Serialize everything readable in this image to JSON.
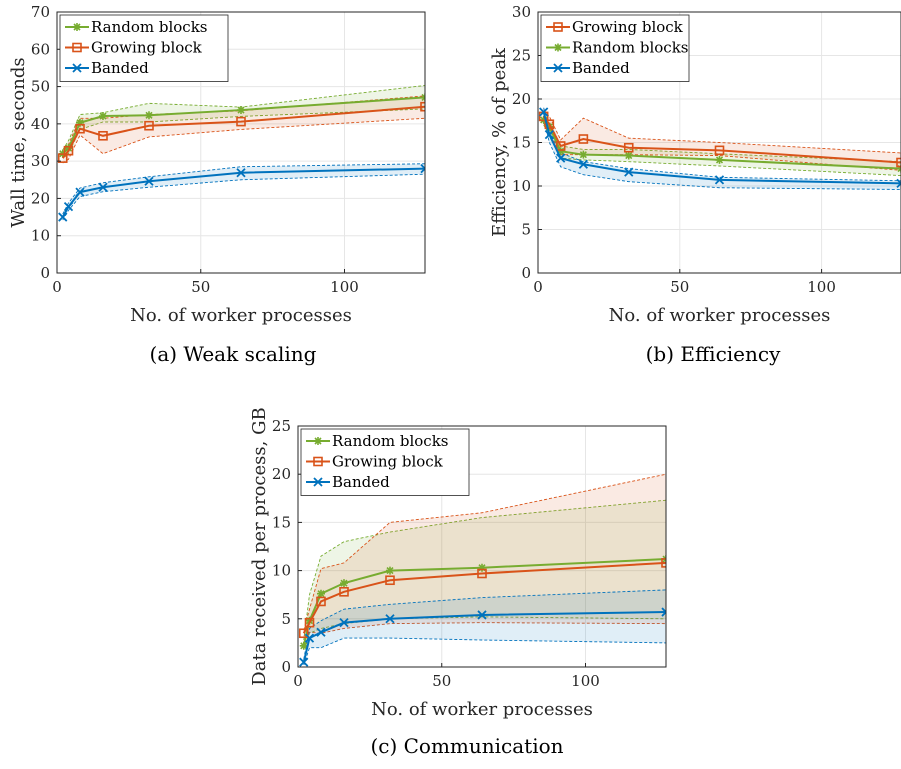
{
  "colors": {
    "random": "#77AC30",
    "growing": "#D95319",
    "banded": "#0072BD",
    "grid": "#e6e6e6",
    "axis": "#262626"
  },
  "chart_data": [
    {
      "id": "a",
      "type": "line",
      "caption": "(a) Weak scaling",
      "xlabel": "No. of worker processes",
      "ylabel": "Wall time, seconds",
      "xlim": [
        0,
        128
      ],
      "ylim": [
        0,
        70
      ],
      "xticks": [
        0,
        50,
        100
      ],
      "yticks": [
        0,
        10,
        20,
        30,
        40,
        50,
        60,
        70
      ],
      "grid": true,
      "legend_position": "top-left",
      "legend_order": [
        "random",
        "growing",
        "banded"
      ],
      "x": [
        2,
        4,
        8,
        16,
        32,
        64,
        128
      ],
      "series": [
        {
          "key": "random",
          "name": "Random blocks",
          "marker": "asterisk",
          "values": [
            32.0,
            33.5,
            40.3,
            42.1,
            42.3,
            43.7,
            47.1
          ],
          "lower": [
            31.0,
            32.0,
            38.5,
            40.5,
            40.5,
            42.0,
            44.0
          ],
          "upper": [
            33.0,
            35.5,
            42.5,
            43.0,
            45.5,
            44.5,
            50.3
          ]
        },
        {
          "key": "growing",
          "name": "Growing block",
          "marker": "square",
          "values": [
            30.8,
            32.8,
            38.7,
            36.8,
            39.5,
            40.6,
            44.6
          ],
          "lower": [
            29.5,
            30.5,
            37.0,
            32.0,
            36.5,
            38.5,
            41.5
          ],
          "upper": [
            32.0,
            34.5,
            41.5,
            41.5,
            42.5,
            43.5,
            47.5
          ]
        },
        {
          "key": "banded",
          "name": "Banded",
          "marker": "x",
          "values": [
            15.0,
            17.8,
            21.7,
            23.0,
            24.6,
            26.9,
            28.0
          ],
          "lower": [
            14.2,
            16.8,
            20.5,
            21.8,
            23.0,
            25.0,
            26.5
          ],
          "upper": [
            15.8,
            18.8,
            22.8,
            24.2,
            25.8,
            28.5,
            29.3
          ]
        }
      ]
    },
    {
      "id": "b",
      "type": "line",
      "caption": "(b) Efficiency",
      "xlabel": "No. of worker processes",
      "ylabel": "Efficiency, % of peak",
      "xlim": [
        0,
        128
      ],
      "ylim": [
        0,
        30
      ],
      "xticks": [
        0,
        50,
        100
      ],
      "yticks": [
        0,
        5,
        10,
        15,
        20,
        25,
        30
      ],
      "grid": true,
      "legend_position": "top-left",
      "legend_order": [
        "growing",
        "random",
        "banded"
      ],
      "x": [
        2,
        4,
        8,
        16,
        32,
        64,
        128
      ],
      "series": [
        {
          "key": "random",
          "name": "Random blocks",
          "marker": "asterisk",
          "values": [
            17.6,
            16.8,
            14.0,
            13.6,
            13.5,
            13.0,
            12.0
          ],
          "lower": [
            17.0,
            16.0,
            13.2,
            13.0,
            12.8,
            12.3,
            11.2
          ],
          "upper": [
            18.2,
            17.4,
            14.6,
            14.2,
            14.2,
            13.7,
            12.8
          ]
        },
        {
          "key": "growing",
          "name": "Growing block",
          "marker": "square",
          "values": [
            18.0,
            17.1,
            14.6,
            15.4,
            14.4,
            14.1,
            12.7
          ],
          "lower": [
            17.2,
            16.2,
            13.6,
            13.6,
            13.6,
            13.5,
            11.8
          ],
          "upper": [
            18.8,
            18.0,
            15.3,
            17.8,
            15.5,
            15.0,
            13.8
          ]
        },
        {
          "key": "banded",
          "name": "Banded",
          "marker": "x",
          "values": [
            18.5,
            15.9,
            13.2,
            12.5,
            11.6,
            10.7,
            10.3
          ],
          "lower": [
            17.8,
            15.0,
            12.2,
            11.3,
            10.5,
            9.8,
            9.6
          ],
          "upper": [
            19.0,
            16.5,
            13.8,
            12.8,
            12.0,
            11.0,
            10.6
          ]
        }
      ]
    },
    {
      "id": "c",
      "type": "line",
      "caption": "(c) Communication",
      "xlabel": "No. of worker processes",
      "ylabel": "Data received per process, GB",
      "xlim": [
        0,
        128
      ],
      "ylim": [
        0,
        25
      ],
      "xticks": [
        0,
        50,
        100
      ],
      "yticks": [
        0,
        5,
        10,
        15,
        20,
        25
      ],
      "grid": true,
      "legend_position": "top-left",
      "legend_order": [
        "random",
        "growing",
        "banded"
      ],
      "x": [
        2,
        4,
        8,
        16,
        32,
        64,
        128
      ],
      "series": [
        {
          "key": "random",
          "name": "Random blocks",
          "marker": "asterisk",
          "values": [
            2.2,
            4.8,
            7.6,
            8.7,
            10.0,
            10.3,
            11.2
          ],
          "lower": [
            1.8,
            3.5,
            4.0,
            4.5,
            5.0,
            5.2,
            5.0
          ],
          "upper": [
            2.8,
            7.5,
            11.5,
            13.0,
            14.0,
            15.5,
            17.3
          ]
        },
        {
          "key": "growing",
          "name": "Growing block",
          "marker": "square",
          "values": [
            3.5,
            4.6,
            6.8,
            7.8,
            9.0,
            9.7,
            10.8
          ],
          "lower": [
            3.2,
            3.6,
            3.5,
            4.0,
            4.5,
            4.6,
            4.5
          ],
          "upper": [
            3.8,
            6.0,
            10.2,
            10.8,
            15.0,
            16.0,
            20.0
          ]
        },
        {
          "key": "banded",
          "name": "Banded",
          "marker": "x",
          "values": [
            0.5,
            3.0,
            3.6,
            4.6,
            5.0,
            5.4,
            5.7
          ],
          "lower": [
            0.2,
            2.0,
            2.0,
            3.0,
            3.0,
            2.8,
            2.5
          ],
          "upper": [
            0.8,
            4.0,
            4.8,
            6.0,
            6.5,
            7.2,
            8.0
          ]
        }
      ]
    }
  ]
}
